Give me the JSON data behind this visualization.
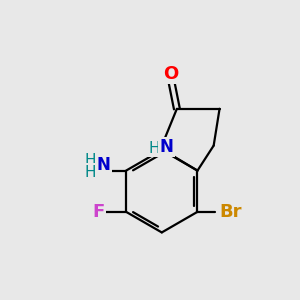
{
  "bg_color": "#e8e8e8",
  "bond_color": "#000000",
  "bond_lw": 1.6,
  "atom_colors": {
    "O": "#ff0000",
    "N": "#0000cc",
    "F": "#cc44cc",
    "Br": "#cc8800",
    "C": "#000000",
    "H": "#008888"
  },
  "figsize": [
    3.0,
    3.0
  ],
  "dpi": 100
}
